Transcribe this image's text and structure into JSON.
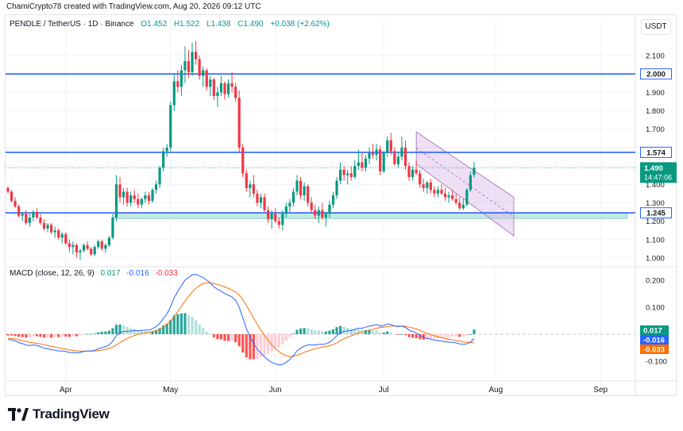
{
  "header": {
    "credit": "ChamiCrypto78 created with TradingView.com, Aug 20, 2026 09:12 UTC",
    "symbol": "PENDLE / TetherUS · 1D · Binance",
    "open": "O1.452",
    "high": "H1.522",
    "low": "L1.438",
    "close": "C1.490",
    "change": "+0.038 (+2.62%)",
    "currency": "USDT"
  },
  "macd_header": {
    "label": "MACD (close, 12, 26, 9)",
    "histogram": "0.017",
    "macd": "-0.016",
    "signal": "-0.033"
  },
  "brand": "TradingView",
  "colors": {
    "up": "#089981",
    "down": "#f23645",
    "level_line": "#2962ff",
    "support_zone": "#8fd9cf",
    "channel": "#d9b8e6",
    "macd_line": "#2962ff",
    "signal_line": "#ff6d00"
  },
  "chart_data": [
    {
      "type": "candlestick",
      "title": "PENDLE / TetherUS · 1D · Binance",
      "x_ticks": [
        "Apr",
        "May",
        "Jun",
        "Jul",
        "Aug",
        "Sep"
      ],
      "y_ticks": [
        "2.100",
        "2.000",
        "1.900",
        "1.800",
        "1.700",
        "1.600",
        "1.500",
        "1.400",
        "1.300",
        "1.200",
        "1.100",
        "1.000"
      ],
      "ylim": [
        0.96,
        2.2
      ],
      "grid": true,
      "horizontal_levels": [
        {
          "value": 2.0,
          "label": "2.000"
        },
        {
          "value": 1.574,
          "label": "1.574"
        },
        {
          "value": 1.245,
          "label": "1.245"
        }
      ],
      "current_price": {
        "value": 1.49,
        "label": "1.490",
        "countdown": "14:47:06"
      },
      "support_zone": [
        1.215,
        1.245
      ],
      "descending_channel": {
        "upper": [
          [
            113,
            1.685
          ],
          [
            140,
            1.33
          ]
        ],
        "lower": [
          [
            113,
            1.51
          ],
          [
            140,
            1.12
          ]
        ]
      },
      "ohlc": [
        [
          1.38,
          1.39,
          1.35,
          1.36
        ],
        [
          1.36,
          1.37,
          1.3,
          1.31
        ],
        [
          1.31,
          1.33,
          1.27,
          1.28
        ],
        [
          1.28,
          1.29,
          1.22,
          1.23
        ],
        [
          1.23,
          1.25,
          1.2,
          1.24
        ],
        [
          1.24,
          1.26,
          1.18,
          1.19
        ],
        [
          1.19,
          1.24,
          1.17,
          1.22
        ],
        [
          1.22,
          1.26,
          1.2,
          1.25
        ],
        [
          1.25,
          1.27,
          1.21,
          1.22
        ],
        [
          1.22,
          1.24,
          1.18,
          1.19
        ],
        [
          1.19,
          1.21,
          1.15,
          1.16
        ],
        [
          1.16,
          1.19,
          1.14,
          1.18
        ],
        [
          1.18,
          1.19,
          1.13,
          1.14
        ],
        [
          1.14,
          1.17,
          1.11,
          1.15
        ],
        [
          1.15,
          1.16,
          1.1,
          1.11
        ],
        [
          1.11,
          1.14,
          1.08,
          1.13
        ],
        [
          1.13,
          1.14,
          1.07,
          1.08
        ],
        [
          1.08,
          1.1,
          1.03,
          1.06
        ],
        [
          1.06,
          1.09,
          1.02,
          1.07
        ],
        [
          1.07,
          1.08,
          1.0,
          1.03
        ],
        [
          1.03,
          1.05,
          0.99,
          1.04
        ],
        [
          1.04,
          1.08,
          1.03,
          1.07
        ],
        [
          1.07,
          1.09,
          1.04,
          1.05
        ],
        [
          1.05,
          1.06,
          1.01,
          1.02
        ],
        [
          1.02,
          1.07,
          1.01,
          1.06
        ],
        [
          1.06,
          1.1,
          1.05,
          1.09
        ],
        [
          1.09,
          1.1,
          1.04,
          1.05
        ],
        [
          1.05,
          1.08,
          1.03,
          1.07
        ],
        [
          1.07,
          1.12,
          1.06,
          1.11
        ],
        [
          1.11,
          1.24,
          1.1,
          1.22
        ],
        [
          1.22,
          1.45,
          1.2,
          1.4
        ],
        [
          1.4,
          1.44,
          1.3,
          1.33
        ],
        [
          1.33,
          1.38,
          1.29,
          1.36
        ],
        [
          1.36,
          1.38,
          1.28,
          1.3
        ],
        [
          1.3,
          1.36,
          1.28,
          1.34
        ],
        [
          1.34,
          1.37,
          1.3,
          1.32
        ],
        [
          1.32,
          1.35,
          1.27,
          1.29
        ],
        [
          1.29,
          1.33,
          1.27,
          1.32
        ],
        [
          1.32,
          1.36,
          1.3,
          1.34
        ],
        [
          1.34,
          1.36,
          1.29,
          1.31
        ],
        [
          1.31,
          1.38,
          1.3,
          1.37
        ],
        [
          1.37,
          1.42,
          1.35,
          1.4
        ],
        [
          1.4,
          1.5,
          1.38,
          1.49
        ],
        [
          1.49,
          1.6,
          1.47,
          1.58
        ],
        [
          1.58,
          1.62,
          1.55,
          1.6
        ],
        [
          1.6,
          1.85,
          1.58,
          1.83
        ],
        [
          1.83,
          2.0,
          1.8,
          1.96
        ],
        [
          1.96,
          2.02,
          1.9,
          1.93
        ],
        [
          1.93,
          2.05,
          1.88,
          2.02
        ],
        [
          2.02,
          2.15,
          1.95,
          2.07
        ],
        [
          2.07,
          2.13,
          1.98,
          2.01
        ],
        [
          2.01,
          2.17,
          1.99,
          2.12
        ],
        [
          2.12,
          2.18,
          2.05,
          2.08
        ],
        [
          2.08,
          2.1,
          1.97,
          1.99
        ],
        [
          1.99,
          2.04,
          1.93,
          2.02
        ],
        [
          2.02,
          2.03,
          1.91,
          1.93
        ],
        [
          1.93,
          1.99,
          1.88,
          1.97
        ],
        [
          1.97,
          1.98,
          1.86,
          1.88
        ],
        [
          1.88,
          1.93,
          1.82,
          1.9
        ],
        [
          1.9,
          1.99,
          1.88,
          1.95
        ],
        [
          1.95,
          1.96,
          1.86,
          1.89
        ],
        [
          1.89,
          1.97,
          1.87,
          1.95
        ],
        [
          1.95,
          2.01,
          1.9,
          1.93
        ],
        [
          1.93,
          1.95,
          1.85,
          1.87
        ],
        [
          1.87,
          1.91,
          1.57,
          1.6
        ],
        [
          1.6,
          1.62,
          1.44,
          1.46
        ],
        [
          1.46,
          1.48,
          1.36,
          1.38
        ],
        [
          1.38,
          1.42,
          1.33,
          1.4
        ],
        [
          1.4,
          1.45,
          1.33,
          1.35
        ],
        [
          1.35,
          1.37,
          1.28,
          1.3
        ],
        [
          1.3,
          1.35,
          1.27,
          1.33
        ],
        [
          1.33,
          1.35,
          1.25,
          1.26
        ],
        [
          1.26,
          1.28,
          1.19,
          1.21
        ],
        [
          1.21,
          1.26,
          1.16,
          1.24
        ],
        [
          1.24,
          1.27,
          1.19,
          1.2
        ],
        [
          1.2,
          1.22,
          1.16,
          1.18
        ],
        [
          1.18,
          1.26,
          1.15,
          1.24
        ],
        [
          1.24,
          1.3,
          1.22,
          1.28
        ],
        [
          1.28,
          1.32,
          1.25,
          1.3
        ],
        [
          1.3,
          1.38,
          1.28,
          1.36
        ],
        [
          1.36,
          1.45,
          1.34,
          1.42
        ],
        [
          1.42,
          1.44,
          1.32,
          1.34
        ],
        [
          1.34,
          1.41,
          1.31,
          1.39
        ],
        [
          1.39,
          1.4,
          1.28,
          1.3
        ],
        [
          1.3,
          1.33,
          1.24,
          1.26
        ],
        [
          1.26,
          1.29,
          1.21,
          1.23
        ],
        [
          1.23,
          1.28,
          1.19,
          1.26
        ],
        [
          1.26,
          1.3,
          1.21,
          1.22
        ],
        [
          1.22,
          1.25,
          1.17,
          1.24
        ],
        [
          1.24,
          1.31,
          1.22,
          1.29
        ],
        [
          1.29,
          1.36,
          1.27,
          1.34
        ],
        [
          1.34,
          1.44,
          1.32,
          1.42
        ],
        [
          1.42,
          1.52,
          1.4,
          1.48
        ],
        [
          1.48,
          1.5,
          1.42,
          1.45
        ],
        [
          1.45,
          1.48,
          1.4,
          1.46
        ],
        [
          1.46,
          1.5,
          1.42,
          1.44
        ],
        [
          1.44,
          1.53,
          1.43,
          1.5
        ],
        [
          1.5,
          1.59,
          1.48,
          1.52
        ],
        [
          1.52,
          1.57,
          1.47,
          1.49
        ],
        [
          1.49,
          1.56,
          1.47,
          1.54
        ],
        [
          1.54,
          1.6,
          1.51,
          1.57
        ],
        [
          1.57,
          1.62,
          1.54,
          1.56
        ],
        [
          1.56,
          1.62,
          1.53,
          1.59
        ],
        [
          1.59,
          1.61,
          1.45,
          1.47
        ],
        [
          1.47,
          1.58,
          1.46,
          1.57
        ],
        [
          1.57,
          1.66,
          1.55,
          1.64
        ],
        [
          1.64,
          1.68,
          1.56,
          1.58
        ],
        [
          1.58,
          1.6,
          1.5,
          1.51
        ],
        [
          1.51,
          1.57,
          1.49,
          1.55
        ],
        [
          1.55,
          1.66,
          1.53,
          1.6
        ],
        [
          1.6,
          1.64,
          1.48,
          1.5
        ],
        [
          1.5,
          1.52,
          1.42,
          1.44
        ],
        [
          1.44,
          1.5,
          1.42,
          1.48
        ],
        [
          1.48,
          1.53,
          1.45,
          1.46
        ],
        [
          1.46,
          1.48,
          1.38,
          1.4
        ],
        [
          1.4,
          1.43,
          1.36,
          1.38
        ],
        [
          1.38,
          1.42,
          1.35,
          1.41
        ],
        [
          1.41,
          1.43,
          1.35,
          1.37
        ],
        [
          1.37,
          1.39,
          1.33,
          1.35
        ],
        [
          1.35,
          1.39,
          1.33,
          1.37
        ],
        [
          1.37,
          1.4,
          1.34,
          1.35
        ],
        [
          1.35,
          1.38,
          1.31,
          1.33
        ],
        [
          1.33,
          1.36,
          1.3,
          1.34
        ],
        [
          1.34,
          1.37,
          1.31,
          1.32
        ],
        [
          1.32,
          1.35,
          1.29,
          1.3
        ],
        [
          1.3,
          1.33,
          1.26,
          1.27
        ],
        [
          1.27,
          1.32,
          1.26,
          1.29
        ],
        [
          1.29,
          1.38,
          1.28,
          1.37
        ],
        [
          1.37,
          1.47,
          1.36,
          1.45
        ],
        [
          1.452,
          1.522,
          1.438,
          1.49
        ]
      ]
    },
    {
      "type": "macd",
      "label": "MACD (close, 12, 26, 9)",
      "y_ticks": [
        "0.200",
        "0.100",
        "-0.100"
      ],
      "ylim": [
        -0.13,
        0.25
      ],
      "value_labels": {
        "histogram": "0.017",
        "macd": "-0.016",
        "signal": "-0.033"
      },
      "macd_line": [
        -0.02,
        -0.021,
        -0.025,
        -0.031,
        -0.035,
        -0.04,
        -0.042,
        -0.04,
        -0.042,
        -0.046,
        -0.052,
        -0.054,
        -0.058,
        -0.059,
        -0.062,
        -0.062,
        -0.064,
        -0.068,
        -0.068,
        -0.07,
        -0.068,
        -0.064,
        -0.062,
        -0.062,
        -0.06,
        -0.054,
        -0.05,
        -0.046,
        -0.04,
        -0.026,
        -0.005,
        0.005,
        0.01,
        0.01,
        0.012,
        0.014,
        0.013,
        0.014,
        0.015,
        0.015,
        0.02,
        0.028,
        0.04,
        0.058,
        0.075,
        0.102,
        0.135,
        0.158,
        0.18,
        0.2,
        0.21,
        0.22,
        0.222,
        0.216,
        0.21,
        0.2,
        0.19,
        0.176,
        0.166,
        0.16,
        0.15,
        0.144,
        0.138,
        0.126,
        0.1,
        0.06,
        0.02,
        -0.01,
        -0.034,
        -0.056,
        -0.07,
        -0.084,
        -0.096,
        -0.104,
        -0.11,
        -0.114,
        -0.112,
        -0.104,
        -0.094,
        -0.08,
        -0.062,
        -0.052,
        -0.044,
        -0.04,
        -0.04,
        -0.04,
        -0.038,
        -0.038,
        -0.036,
        -0.03,
        -0.02,
        -0.006,
        0.006,
        0.01,
        0.012,
        0.014,
        0.018,
        0.022,
        0.022,
        0.026,
        0.03,
        0.032,
        0.036,
        0.03,
        0.032,
        0.038,
        0.036,
        0.03,
        0.028,
        0.03,
        0.025,
        0.015,
        0.01,
        0.004,
        -0.004,
        -0.012,
        -0.016,
        -0.018,
        -0.022,
        -0.024,
        -0.026,
        -0.028,
        -0.03,
        -0.03,
        -0.032,
        -0.036,
        -0.038,
        -0.036,
        -0.03,
        -0.016
      ],
      "signal_line": [
        -0.015,
        -0.016,
        -0.018,
        -0.021,
        -0.024,
        -0.027,
        -0.03,
        -0.032,
        -0.034,
        -0.036,
        -0.039,
        -0.042,
        -0.045,
        -0.048,
        -0.051,
        -0.053,
        -0.055,
        -0.058,
        -0.06,
        -0.062,
        -0.063,
        -0.063,
        -0.063,
        -0.063,
        -0.062,
        -0.061,
        -0.059,
        -0.056,
        -0.053,
        -0.048,
        -0.04,
        -0.031,
        -0.023,
        -0.016,
        -0.01,
        -0.005,
        -0.001,
        0.002,
        0.005,
        0.007,
        0.01,
        0.013,
        0.018,
        0.026,
        0.036,
        0.049,
        0.066,
        0.084,
        0.103,
        0.122,
        0.14,
        0.156,
        0.17,
        0.18,
        0.187,
        0.19,
        0.19,
        0.188,
        0.184,
        0.18,
        0.175,
        0.169,
        0.163,
        0.156,
        0.145,
        0.128,
        0.106,
        0.083,
        0.059,
        0.036,
        0.015,
        -0.005,
        -0.023,
        -0.039,
        -0.053,
        -0.065,
        -0.074,
        -0.08,
        -0.083,
        -0.082,
        -0.078,
        -0.073,
        -0.067,
        -0.062,
        -0.058,
        -0.054,
        -0.051,
        -0.048,
        -0.046,
        -0.043,
        -0.038,
        -0.032,
        -0.024,
        -0.017,
        -0.011,
        -0.006,
        -0.001,
        0.004,
        0.008,
        0.011,
        0.015,
        0.018,
        0.022,
        0.024,
        0.026,
        0.028,
        0.03,
        0.03,
        0.03,
        0.03,
        0.029,
        0.026,
        0.023,
        0.019,
        0.014,
        0.008,
        0.003,
        -0.001,
        -0.006,
        -0.01,
        -0.013,
        -0.016,
        -0.019,
        -0.021,
        -0.024,
        -0.026,
        -0.029,
        -0.03,
        -0.03,
        -0.033
      ]
    }
  ]
}
